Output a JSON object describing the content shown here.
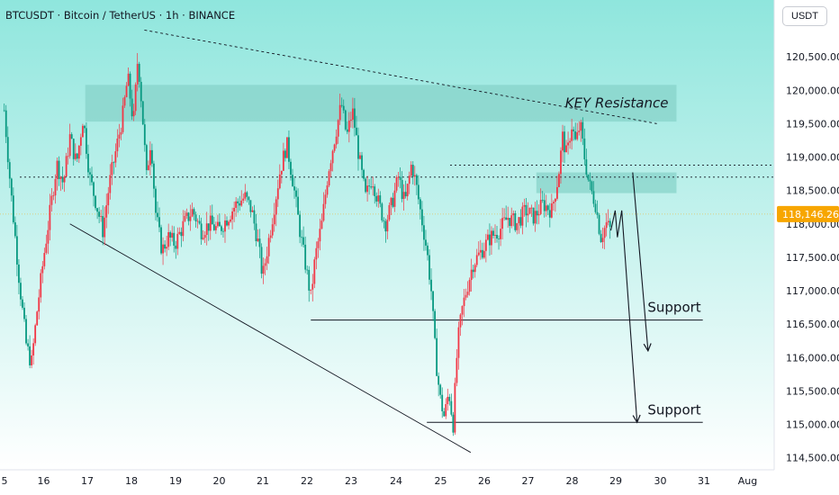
{
  "header": {
    "title": "BTCUSDT · Bitcoin / TetherUS · 1h · BINANCE",
    "unit": "USDT"
  },
  "colors": {
    "up": "#f23645",
    "down": "#089981",
    "bg_top": "#8fe6dd",
    "bg_bottom": "#ffffff",
    "zone": "#84d2c8",
    "price_tag": "#f7a600"
  },
  "chart_data": {
    "type": "candlestick",
    "symbol": "BTCUSDT",
    "timeframe": "1h",
    "ylim": [
      114300,
      121300
    ],
    "y_ticks": [
      114500,
      115000,
      115500,
      116000,
      116500,
      117000,
      117500,
      118000,
      118500,
      119000,
      119500,
      120000,
      120500
    ],
    "y_tick_labels": [
      "114,500.00",
      "115,000.00",
      "115,500.00",
      "116,000.00",
      "116,500.00",
      "117,000.00",
      "117,500.00",
      "118,000.00",
      "118,500.00",
      "119,000.00",
      "119,500.00",
      "120,000.00",
      "120,500.00"
    ],
    "x_ticks": [
      "5",
      "16",
      "17",
      "18",
      "19",
      "20",
      "21",
      "22",
      "23",
      "24",
      "25",
      "26",
      "27",
      "28",
      "29",
      "30",
      "31",
      "Aug"
    ],
    "current_price": 118146.26,
    "current_price_label": "118,146.26",
    "close_path": [
      {
        "day": 15.1,
        "p": 119700
      },
      {
        "day": 15.25,
        "p": 118500
      },
      {
        "day": 15.45,
        "p": 117100
      },
      {
        "day": 15.6,
        "p": 116200
      },
      {
        "day": 15.72,
        "p": 115900
      },
      {
        "day": 15.85,
        "p": 116700
      },
      {
        "day": 16.0,
        "p": 117500
      },
      {
        "day": 16.15,
        "p": 118200
      },
      {
        "day": 16.3,
        "p": 118900
      },
      {
        "day": 16.45,
        "p": 118600
      },
      {
        "day": 16.6,
        "p": 119300
      },
      {
        "day": 16.75,
        "p": 118900
      },
      {
        "day": 16.9,
        "p": 119600
      },
      {
        "day": 17.05,
        "p": 118700
      },
      {
        "day": 17.2,
        "p": 118300
      },
      {
        "day": 17.35,
        "p": 117900
      },
      {
        "day": 17.5,
        "p": 118600
      },
      {
        "day": 17.65,
        "p": 119100
      },
      {
        "day": 17.8,
        "p": 119600
      },
      {
        "day": 17.92,
        "p": 120200
      },
      {
        "day": 18.05,
        "p": 119500
      },
      {
        "day": 18.15,
        "p": 120500
      },
      {
        "day": 18.25,
        "p": 119700
      },
      {
        "day": 18.35,
        "p": 118700
      },
      {
        "day": 18.45,
        "p": 119300
      },
      {
        "day": 18.55,
        "p": 118200
      },
      {
        "day": 18.7,
        "p": 117600
      },
      {
        "day": 18.85,
        "p": 117800
      },
      {
        "day": 19.0,
        "p": 117700
      },
      {
        "day": 19.2,
        "p": 118000
      },
      {
        "day": 19.4,
        "p": 118200
      },
      {
        "day": 19.6,
        "p": 117900
      },
      {
        "day": 19.8,
        "p": 118000
      },
      {
        "day": 20.0,
        "p": 117900
      },
      {
        "day": 20.2,
        "p": 118100
      },
      {
        "day": 20.4,
        "p": 118300
      },
      {
        "day": 20.6,
        "p": 118400
      },
      {
        "day": 20.75,
        "p": 118200
      },
      {
        "day": 20.9,
        "p": 117700
      },
      {
        "day": 21.0,
        "p": 117200
      },
      {
        "day": 21.1,
        "p": 117600
      },
      {
        "day": 21.25,
        "p": 118200
      },
      {
        "day": 21.4,
        "p": 118800
      },
      {
        "day": 21.55,
        "p": 119200
      },
      {
        "day": 21.7,
        "p": 118600
      },
      {
        "day": 21.85,
        "p": 117900
      },
      {
        "day": 22.0,
        "p": 117300
      },
      {
        "day": 22.1,
        "p": 116900
      },
      {
        "day": 22.2,
        "p": 117500
      },
      {
        "day": 22.35,
        "p": 118000
      },
      {
        "day": 22.5,
        "p": 118800
      },
      {
        "day": 22.65,
        "p": 119300
      },
      {
        "day": 22.8,
        "p": 119800
      },
      {
        "day": 22.92,
        "p": 119300
      },
      {
        "day": 23.05,
        "p": 119700
      },
      {
        "day": 23.2,
        "p": 119000
      },
      {
        "day": 23.35,
        "p": 118400
      },
      {
        "day": 23.5,
        "p": 118700
      },
      {
        "day": 23.65,
        "p": 118300
      },
      {
        "day": 23.8,
        "p": 118000
      },
      {
        "day": 23.95,
        "p": 118300
      },
      {
        "day": 24.1,
        "p": 118700
      },
      {
        "day": 24.25,
        "p": 118300
      },
      {
        "day": 24.4,
        "p": 118900
      },
      {
        "day": 24.5,
        "p": 118600
      },
      {
        "day": 24.6,
        "p": 118200
      },
      {
        "day": 24.75,
        "p": 117600
      },
      {
        "day": 24.85,
        "p": 117000
      },
      {
        "day": 24.95,
        "p": 116000
      },
      {
        "day": 25.05,
        "p": 115400
      },
      {
        "day": 25.15,
        "p": 115100
      },
      {
        "day": 25.25,
        "p": 115500
      },
      {
        "day": 25.35,
        "p": 115000
      },
      {
        "day": 25.45,
        "p": 116200
      },
      {
        "day": 25.55,
        "p": 116700
      },
      {
        "day": 25.65,
        "p": 117000
      },
      {
        "day": 25.8,
        "p": 117400
      },
      {
        "day": 26.0,
        "p": 117600
      },
      {
        "day": 26.2,
        "p": 117800
      },
      {
        "day": 26.4,
        "p": 117900
      },
      {
        "day": 26.6,
        "p": 118100
      },
      {
        "day": 26.8,
        "p": 118000
      },
      {
        "day": 27.0,
        "p": 118200
      },
      {
        "day": 27.2,
        "p": 118100
      },
      {
        "day": 27.4,
        "p": 118300
      },
      {
        "day": 27.6,
        "p": 118200
      },
      {
        "day": 27.75,
        "p": 118700
      },
      {
        "day": 27.85,
        "p": 119300
      },
      {
        "day": 27.95,
        "p": 119000
      },
      {
        "day": 28.05,
        "p": 119500
      },
      {
        "day": 28.15,
        "p": 119200
      },
      {
        "day": 28.25,
        "p": 119500
      },
      {
        "day": 28.35,
        "p": 119000
      },
      {
        "day": 28.45,
        "p": 118600
      },
      {
        "day": 28.6,
        "p": 118300
      },
      {
        "day": 28.72,
        "p": 117800
      },
      {
        "day": 28.85,
        "p": 118000
      },
      {
        "day": 28.95,
        "p": 117900
      }
    ],
    "zones": [
      {
        "name": "KEY Resistance",
        "from_day": 16.95,
        "to_day": 30.45,
        "p_low": 119530,
        "p_high": 120080
      },
      {
        "name": "",
        "from_day": 27.25,
        "to_day": 30.45,
        "p_low": 118460,
        "p_high": 118770
      }
    ],
    "trendlines": [
      {
        "type": "dashed",
        "p1": {
          "day": 18.3,
          "p": 120900
        },
        "p2": {
          "day": 30.0,
          "p": 119500
        }
      },
      {
        "type": "solid",
        "p1": {
          "day": 16.6,
          "p": 118000
        },
        "p2": {
          "day": 25.75,
          "p": 114580
        }
      }
    ],
    "dotted_levels": [
      118700,
      118880
    ],
    "support_levels": [
      {
        "label": "Support",
        "p": 116560,
        "from_day": 22.1,
        "to_day": 31.05
      },
      {
        "label": "Support",
        "p": 115030,
        "from_day": 24.75,
        "to_day": 31.05
      }
    ],
    "annotations": [
      "KEY Resistance",
      "Support",
      "Support"
    ],
    "projection": {
      "path": [
        {
          "day": 28.95,
          "p": 117900
        },
        {
          "day": 29.05,
          "p": 118200
        },
        {
          "day": 29.1,
          "p": 117800
        },
        {
          "day": 29.2,
          "p": 118200
        },
        {
          "day": 29.55,
          "p": 115030
        }
      ],
      "arrow": {
        "from": {
          "day": 29.45,
          "p": 118770
        },
        "to": {
          "day": 29.8,
          "p": 116100
        }
      }
    }
  }
}
